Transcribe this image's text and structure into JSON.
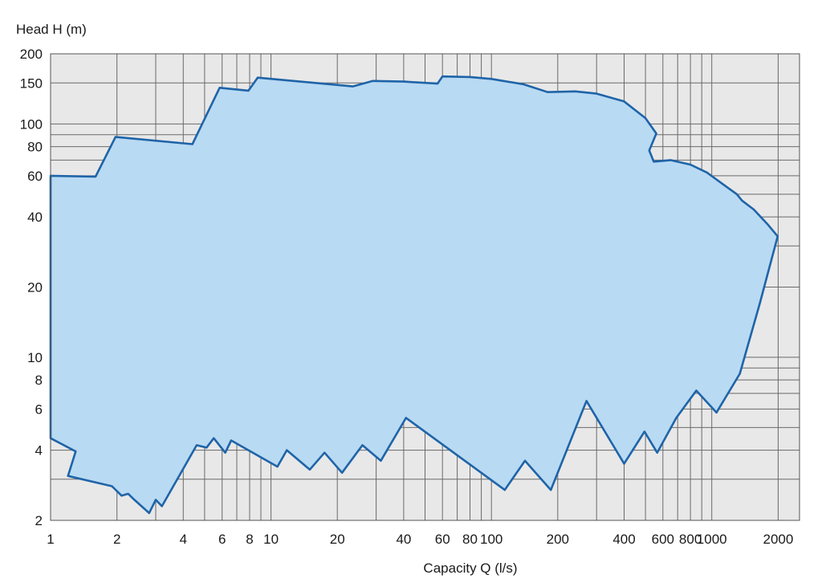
{
  "chart_data": {
    "type": "area",
    "title": "",
    "xlabel": "Capacity Q (l/s)",
    "ylabel": "Head H (m)",
    "x_scale": "log",
    "y_scale": "log",
    "xlim": [
      1,
      2500
    ],
    "ylim": [
      2,
      200
    ],
    "grid": true,
    "x_ticks": [
      {
        "value": 1,
        "label": "1"
      },
      {
        "value": 2,
        "label": "2"
      },
      {
        "value": 4,
        "label": "4"
      },
      {
        "value": 6,
        "label": "6"
      },
      {
        "value": 8,
        "label": "8"
      },
      {
        "value": 10,
        "label": "10"
      },
      {
        "value": 20,
        "label": "20"
      },
      {
        "value": 40,
        "label": "40"
      },
      {
        "value": 60,
        "label": "60"
      },
      {
        "value": 80,
        "label": "80"
      },
      {
        "value": 100,
        "label": "100"
      },
      {
        "value": 200,
        "label": "200"
      },
      {
        "value": 400,
        "label": "400"
      },
      {
        "value": 600,
        "label": "600"
      },
      {
        "value": 800,
        "label": "800"
      },
      {
        "value": 1000,
        "label": "1000"
      },
      {
        "value": 2000,
        "label": "2000"
      }
    ],
    "y_ticks": [
      {
        "value": 2,
        "label": "2"
      },
      {
        "value": 4,
        "label": "4"
      },
      {
        "value": 6,
        "label": "6"
      },
      {
        "value": 8,
        "label": "8"
      },
      {
        "value": 10,
        "label": "10"
      },
      {
        "value": 20,
        "label": "20"
      },
      {
        "value": 40,
        "label": "40"
      },
      {
        "value": 60,
        "label": "60"
      },
      {
        "value": 80,
        "label": "80"
      },
      {
        "value": 100,
        "label": "100"
      },
      {
        "value": 150,
        "label": "150"
      },
      {
        "value": 200,
        "label": "200"
      }
    ],
    "x_gridlines": [
      1,
      2,
      3,
      4,
      5,
      6,
      7,
      8,
      9,
      10,
      20,
      30,
      40,
      50,
      60,
      70,
      80,
      90,
      100,
      200,
      300,
      400,
      500,
      600,
      700,
      800,
      900,
      1000,
      2000
    ],
    "y_gridlines": [
      2,
      3,
      4,
      5,
      6,
      7,
      8,
      9,
      10,
      20,
      30,
      40,
      50,
      60,
      70,
      80,
      90,
      100,
      150,
      200
    ],
    "envelope": [
      [
        1.0,
        60
      ],
      [
        1.6,
        59.5
      ],
      [
        1.97,
        88
      ],
      [
        4.4,
        82
      ],
      [
        5.85,
        143
      ],
      [
        7.9,
        139
      ],
      [
        8.7,
        158
      ],
      [
        23.5,
        145
      ],
      [
        29,
        153
      ],
      [
        40,
        152
      ],
      [
        57,
        149
      ],
      [
        60,
        160
      ],
      [
        80,
        159
      ],
      [
        100,
        156
      ],
      [
        140,
        148
      ],
      [
        180,
        137
      ],
      [
        240,
        138
      ],
      [
        300,
        135
      ],
      [
        400,
        125
      ],
      [
        500,
        106
      ],
      [
        560,
        91
      ],
      [
        520,
        77
      ],
      [
        545,
        69
      ],
      [
        650,
        70
      ],
      [
        800,
        67
      ],
      [
        950,
        62
      ],
      [
        1100,
        56
      ],
      [
        1300,
        50
      ],
      [
        1370,
        47
      ],
      [
        1550,
        43
      ],
      [
        1800,
        37
      ],
      [
        1990,
        33
      ],
      [
        1650,
        17
      ],
      [
        1340,
        8.5
      ],
      [
        1050,
        5.8
      ],
      [
        850,
        7.2
      ],
      [
        690,
        5.5
      ],
      [
        565,
        3.9
      ],
      [
        495,
        4.8
      ],
      [
        400,
        3.5
      ],
      [
        270,
        6.5
      ],
      [
        186,
        2.7
      ],
      [
        142,
        3.6
      ],
      [
        115,
        2.7
      ],
      [
        41,
        5.5
      ],
      [
        31.5,
        3.6
      ],
      [
        26,
        4.2
      ],
      [
        21,
        3.2
      ],
      [
        17.5,
        3.9
      ],
      [
        15,
        3.3
      ],
      [
        11.8,
        4.0
      ],
      [
        10.7,
        3.4
      ],
      [
        6.6,
        4.4
      ],
      [
        6.2,
        3.9
      ],
      [
        5.5,
        4.5
      ],
      [
        5.1,
        4.1
      ],
      [
        4.6,
        4.2
      ],
      [
        3.2,
        2.3
      ],
      [
        3.0,
        2.45
      ],
      [
        2.8,
        2.15
      ],
      [
        2.4,
        2.45
      ],
      [
        2.25,
        2.6
      ],
      [
        2.1,
        2.55
      ],
      [
        1.9,
        2.8
      ],
      [
        1.2,
        3.1
      ],
      [
        1.3,
        3.95
      ],
      [
        1.0,
        4.5
      ]
    ],
    "colors": {
      "fill": "#b9daf3",
      "stroke": "#1e64a8",
      "plot_bg": "#e8e8e8",
      "grid": "#6a6a6a"
    }
  }
}
